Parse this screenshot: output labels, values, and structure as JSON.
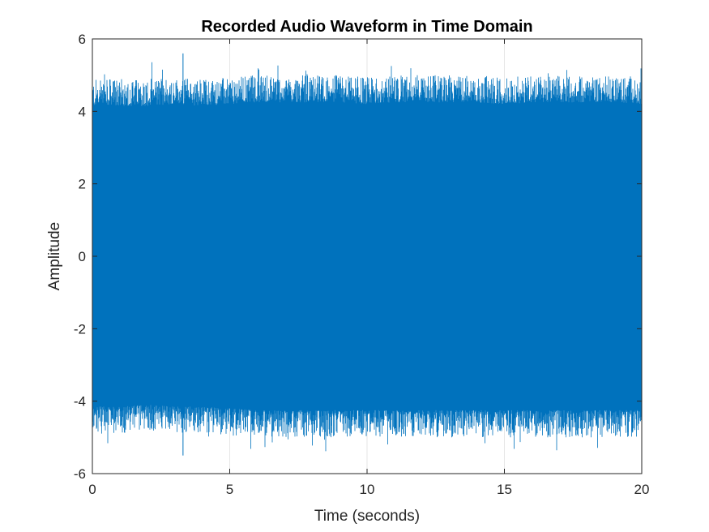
{
  "chart_data": {
    "type": "line",
    "title": "Recorded Audio Waveform in Time Domain",
    "xlabel": "Time (seconds)",
    "ylabel": "Amplitude",
    "xlim": [
      0,
      20
    ],
    "ylim": [
      -6,
      6
    ],
    "x_ticks": [
      0,
      5,
      10,
      15,
      20
    ],
    "y_ticks": [
      -6,
      -4,
      -2,
      0,
      2,
      4,
      6
    ],
    "x_tick_labels": [
      "0",
      "5",
      "10",
      "15",
      "20"
    ],
    "y_tick_labels": [
      "-6",
      "-4",
      "-2",
      "0",
      "2",
      "4",
      "6"
    ],
    "grid": true,
    "legend": "none",
    "series": [
      {
        "color": "#0072BD",
        "envelope": {
          "x": [
            0,
            1,
            2,
            3,
            4,
            5,
            6,
            7,
            8,
            9,
            10,
            11,
            12,
            13,
            14,
            15,
            16,
            17,
            18,
            19,
            20
          ],
          "upper_typical": [
            4.6,
            4.6,
            4.6,
            4.65,
            4.6,
            4.65,
            4.7,
            4.7,
            4.7,
            4.7,
            4.65,
            4.7,
            4.7,
            4.7,
            4.7,
            4.65,
            4.7,
            4.7,
            4.7,
            4.7,
            4.65
          ],
          "lower_typical": [
            -4.6,
            -4.6,
            -4.55,
            -4.6,
            -4.6,
            -4.65,
            -4.7,
            -4.7,
            -4.7,
            -4.7,
            -4.7,
            -4.7,
            -4.7,
            -4.7,
            -4.7,
            -4.7,
            -4.7,
            -4.7,
            -4.7,
            -4.7,
            -4.7
          ],
          "core_level": 4.0
        },
        "peaks": [
          {
            "x": 3.3,
            "y": 5.6
          },
          {
            "x": 3.3,
            "y": -5.5
          }
        ]
      }
    ]
  }
}
